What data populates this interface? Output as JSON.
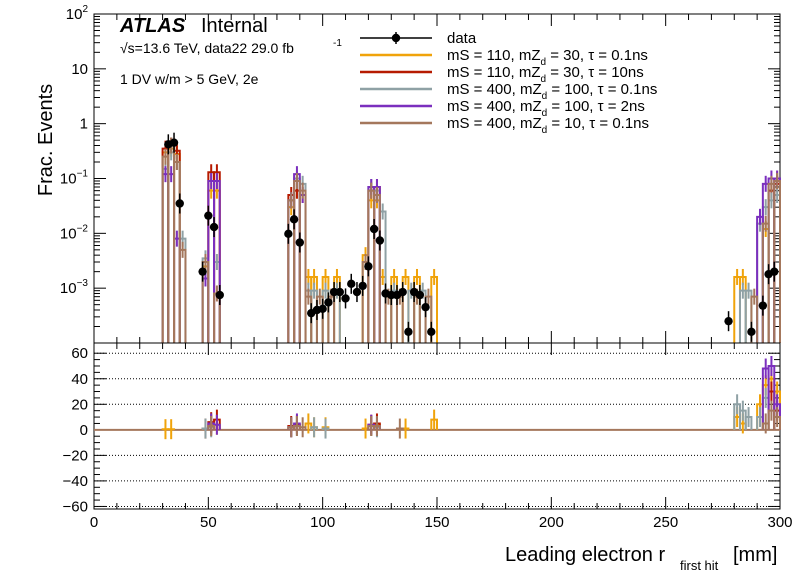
{
  "chart_data": {
    "type": "histogram",
    "experiment": "ATLAS",
    "status": "Internal",
    "energy_label": "√s=13.6 TeV, data22 29.0 fb",
    "lumi_exponent": "-1",
    "selection_label": "1 DV w/m > 5 GeV, 2e",
    "ylabel": "Frac. Events",
    "xlabel_main": "Leading electron r",
    "xlabel_sub": "first hit",
    "xlabel_unit": "[mm]",
    "xlim": [
      0,
      300
    ],
    "ylim": [
      0.0001,
      100
    ],
    "yscale": "log",
    "ratio_ylim": [
      -62,
      68
    ],
    "x_ticks": [
      0,
      50,
      100,
      150,
      200,
      250,
      300
    ],
    "y_ticks": [
      {
        "value": 100,
        "base": "10",
        "exp": "2"
      },
      {
        "value": 10,
        "base": "10",
        "exp": ""
      },
      {
        "value": 1,
        "base": "1",
        "exp": ""
      },
      {
        "value": 0.1,
        "base": "10",
        "exp": "−1"
      },
      {
        "value": 0.01,
        "base": "10",
        "exp": "−2"
      },
      {
        "value": 0.001,
        "base": "10",
        "exp": "−3"
      }
    ],
    "ratio_ticks": [
      {
        "value": 60,
        "label": "60"
      },
      {
        "value": 40,
        "label": "40"
      },
      {
        "value": 20,
        "label": "20"
      },
      {
        "value": 0,
        "label": "0"
      },
      {
        "value": -20,
        "label": "−20"
      },
      {
        "value": -40,
        "label": "−40"
      },
      {
        "value": -60,
        "label": "−60"
      }
    ],
    "ratio_gridlines": [
      60,
      40,
      20,
      0,
      -20,
      -40,
      -60
    ],
    "legend_position": "top-center",
    "data": {
      "name": "data",
      "color": "#000000",
      "points": [
        {
          "x": 32.5,
          "y": 0.42
        },
        {
          "x": 35,
          "y": 0.45
        },
        {
          "x": 37.5,
          "y": 0.035
        },
        {
          "x": 47.5,
          "y": 0.002
        },
        {
          "x": 50,
          "y": 0.021
        },
        {
          "x": 52.5,
          "y": 0.013
        },
        {
          "x": 55,
          "y": 0.00075
        },
        {
          "x": 85,
          "y": 0.0098
        },
        {
          "x": 87.5,
          "y": 0.018
        },
        {
          "x": 90,
          "y": 0.0068
        },
        {
          "x": 95,
          "y": 0.00035
        },
        {
          "x": 97.5,
          "y": 0.0004
        },
        {
          "x": 100,
          "y": 0.00042
        },
        {
          "x": 102.5,
          "y": 0.00055
        },
        {
          "x": 105,
          "y": 0.00085
        },
        {
          "x": 107.5,
          "y": 0.00085
        },
        {
          "x": 110,
          "y": 0.00065
        },
        {
          "x": 112.5,
          "y": 0.0012
        },
        {
          "x": 115,
          "y": 0.00085
        },
        {
          "x": 117.5,
          "y": 0.0011
        },
        {
          "x": 120,
          "y": 0.0025
        },
        {
          "x": 122.5,
          "y": 0.012
        },
        {
          "x": 125,
          "y": 0.0074
        },
        {
          "x": 127.5,
          "y": 0.0008
        },
        {
          "x": 130,
          "y": 0.00075
        },
        {
          "x": 132.5,
          "y": 0.00075
        },
        {
          "x": 135,
          "y": 0.00085
        },
        {
          "x": 137.5,
          "y": 0.00016
        },
        {
          "x": 140,
          "y": 0.00085
        },
        {
          "x": 142.5,
          "y": 0.00075
        },
        {
          "x": 145,
          "y": 0.00045
        },
        {
          "x": 147.5,
          "y": 0.00016
        },
        {
          "x": 277.5,
          "y": 0.00025
        },
        {
          "x": 287.5,
          "y": 0.00016
        },
        {
          "x": 292.5,
          "y": 0.00048
        },
        {
          "x": 295,
          "y": 0.0018
        },
        {
          "x": 297.5,
          "y": 0.002
        }
      ]
    },
    "series": [
      {
        "name": "mS = 110, mZ",
        "sub": "d",
        "rest": " = 30, τ = 0.1ns",
        "color": "#f0a30a",
        "bins": [
          [
            30,
            32.5,
            0.3
          ],
          [
            32.5,
            35,
            0.35
          ],
          [
            35,
            37.5,
            0.28
          ],
          [
            47.5,
            50,
            0.0025
          ],
          [
            50,
            52.5,
            0.06
          ],
          [
            52.5,
            55,
            0.06
          ],
          [
            85,
            87.5,
            0.03
          ],
          [
            87.5,
            90,
            0.06
          ],
          [
            90,
            92.5,
            0.05
          ],
          [
            92.5,
            95,
            0.0016
          ],
          [
            95,
            97.5,
            0.0016
          ],
          [
            100,
            102.5,
            0.0016
          ],
          [
            105,
            107.5,
            0.0016
          ],
          [
            117.5,
            120,
            0.004
          ],
          [
            120,
            122.5,
            0.04
          ],
          [
            122.5,
            125,
            0.04
          ],
          [
            125,
            127.5,
            0.0016
          ],
          [
            130,
            132.5,
            0.0016
          ],
          [
            135,
            137.5,
            0.0016
          ],
          [
            140,
            142.5,
            0.0016
          ],
          [
            147.5,
            150,
            0.0016
          ],
          [
            280,
            282.5,
            0.0016
          ],
          [
            282.5,
            285,
            0.0016
          ],
          [
            292.5,
            295,
            0.012
          ],
          [
            295,
            297.5,
            0.06
          ],
          [
            297.5,
            300,
            0.1
          ]
        ]
      },
      {
        "name": "mS = 110, mZ",
        "sub": "d",
        "rest": " = 30, τ = 10ns",
        "color": "#b61a00",
        "bins": [
          [
            30,
            32.5,
            0.35
          ],
          [
            32.5,
            35,
            0.4
          ],
          [
            35,
            37.5,
            0.32
          ],
          [
            50,
            52.5,
            0.13
          ],
          [
            52.5,
            55,
            0.13
          ],
          [
            85,
            87.5,
            0.05
          ],
          [
            87.5,
            90,
            0.06
          ],
          [
            120,
            122.5,
            0.06
          ],
          [
            122.5,
            125,
            0.07
          ],
          [
            295,
            297.5,
            0.06
          ],
          [
            297.5,
            300,
            0.08
          ]
        ]
      },
      {
        "name": "mS = 400, mZ",
        "sub": "d",
        "rest": " = 100, τ = 0.1ns",
        "color": "#8fa1a5",
        "bins": [
          [
            30,
            32.5,
            0.15
          ],
          [
            32.5,
            35,
            0.3
          ],
          [
            35,
            37.5,
            0.2
          ],
          [
            37.5,
            40,
            0.008
          ],
          [
            47.5,
            50,
            0.0035
          ],
          [
            52.5,
            55,
            0.003
          ],
          [
            85,
            87.5,
            0.04
          ],
          [
            87.5,
            90,
            0.1
          ],
          [
            90,
            92.5,
            0.08
          ],
          [
            92.5,
            95,
            0.0009
          ],
          [
            95,
            97.5,
            0.0009
          ],
          [
            100,
            102.5,
            0.0009
          ],
          [
            105,
            107.5,
            0.0009
          ],
          [
            120,
            122.5,
            0.07
          ],
          [
            122.5,
            125,
            0.06
          ],
          [
            125,
            127.5,
            0.025
          ],
          [
            130,
            132.5,
            0.0009
          ],
          [
            137.5,
            140,
            0.0009
          ],
          [
            142.5,
            145,
            0.0009
          ],
          [
            282.5,
            285,
            0.0009
          ],
          [
            285,
            287.5,
            0.0009
          ],
          [
            290,
            292.5,
            0.015
          ],
          [
            292.5,
            295,
            0.03
          ],
          [
            295,
            297.5,
            0.04
          ],
          [
            297.5,
            300,
            0.05
          ]
        ]
      },
      {
        "name": "mS = 400, mZ",
        "sub": "d",
        "rest": " = 100, τ = 2ns",
        "color": "#7b2fbe",
        "bins": [
          [
            30,
            32.5,
            0.12
          ],
          [
            32.5,
            35,
            0.12
          ],
          [
            35,
            37.5,
            0.008
          ],
          [
            47.5,
            50,
            0.0015
          ],
          [
            50,
            52.5,
            0.09
          ],
          [
            52.5,
            55,
            0.09
          ],
          [
            85,
            87.5,
            0.04
          ],
          [
            87.5,
            90,
            0.12
          ],
          [
            90,
            92.5,
            0.05
          ],
          [
            120,
            122.5,
            0.07
          ],
          [
            122.5,
            125,
            0.07
          ],
          [
            290,
            292.5,
            0.02
          ],
          [
            292.5,
            295,
            0.08
          ],
          [
            295,
            297.5,
            0.1
          ],
          [
            297.5,
            300,
            0.1
          ]
        ]
      },
      {
        "name": "mS = 400, mZ",
        "sub": "d",
        "rest": " = 10, τ = 0.1ns",
        "color": "#a4775c",
        "bins": [
          [
            30,
            32.5,
            0.25
          ],
          [
            32.5,
            35,
            0.4
          ],
          [
            35,
            37.5,
            0.2
          ],
          [
            37.5,
            40,
            0.005
          ],
          [
            47.5,
            50,
            0.003
          ],
          [
            52.5,
            55,
            0.0008
          ],
          [
            85,
            87.5,
            0.04
          ],
          [
            87.5,
            90,
            0.09
          ],
          [
            90,
            92.5,
            0.06
          ],
          [
            92.5,
            95,
            0.0007
          ],
          [
            97.5,
            100,
            0.0007
          ],
          [
            102.5,
            105,
            0.0007
          ],
          [
            117.5,
            120,
            0.003
          ],
          [
            120,
            122.5,
            0.06
          ],
          [
            122.5,
            125,
            0.05
          ],
          [
            127.5,
            130,
            0.0007
          ],
          [
            132.5,
            135,
            0.0007
          ],
          [
            140,
            142.5,
            0.0007
          ],
          [
            145,
            147.5,
            0.0007
          ],
          [
            287.5,
            290,
            0.0007
          ],
          [
            292.5,
            295,
            0.015
          ],
          [
            295,
            297.5,
            0.08
          ],
          [
            297.5,
            300,
            0.09
          ]
        ]
      }
    ],
    "ratio_bars": [
      {
        "color": "#f0a30a",
        "bins": [
          [
            30,
            32.5,
            0.5
          ],
          [
            32.5,
            35,
            0.5
          ],
          [
            47.5,
            50,
            1
          ],
          [
            50,
            52.5,
            4
          ],
          [
            52.5,
            55,
            4
          ],
          [
            85,
            87.5,
            2
          ],
          [
            87.5,
            90,
            3
          ],
          [
            92.5,
            95,
            5
          ],
          [
            95,
            97.5,
            2
          ],
          [
            100,
            102.5,
            2
          ],
          [
            117.5,
            120,
            1
          ],
          [
            120,
            122.5,
            3
          ],
          [
            122.5,
            125,
            4
          ],
          [
            135,
            137.5,
            1
          ],
          [
            147.5,
            150,
            8
          ],
          [
            280,
            282.5,
            10
          ],
          [
            282.5,
            285,
            5
          ],
          [
            290,
            292.5,
            20
          ],
          [
            292.5,
            295,
            35
          ],
          [
            295,
            297.5,
            40
          ],
          [
            297.5,
            300,
            30
          ]
        ]
      },
      {
        "color": "#b61a00",
        "bins": [
          [
            47.5,
            50,
            1
          ],
          [
            50,
            52.5,
            6
          ],
          [
            52.5,
            55,
            8
          ],
          [
            85,
            87.5,
            3
          ],
          [
            87.5,
            90,
            4
          ],
          [
            120,
            122.5,
            4
          ],
          [
            122.5,
            125,
            5
          ],
          [
            295,
            297.5,
            30
          ],
          [
            297.5,
            300,
            15
          ]
        ]
      },
      {
        "color": "#8fa1a5",
        "bins": [
          [
            47.5,
            50,
            1
          ],
          [
            50,
            52.5,
            2
          ],
          [
            85,
            87.5,
            2
          ],
          [
            87.5,
            90,
            3
          ],
          [
            95,
            97.5,
            2
          ],
          [
            100,
            102.5,
            1
          ],
          [
            120,
            122.5,
            3
          ],
          [
            122.5,
            125,
            2
          ],
          [
            280,
            282.5,
            20
          ],
          [
            282.5,
            285,
            15
          ],
          [
            285,
            287.5,
            10
          ],
          [
            290,
            292.5,
            10
          ],
          [
            292.5,
            295,
            25
          ]
        ]
      },
      {
        "color": "#7b2fbe",
        "bins": [
          [
            50,
            52.5,
            5
          ],
          [
            52.5,
            55,
            4
          ],
          [
            85,
            87.5,
            2
          ],
          [
            87.5,
            90,
            5
          ],
          [
            120,
            122.5,
            4
          ],
          [
            122.5,
            125,
            3
          ],
          [
            292.5,
            295,
            48
          ],
          [
            295,
            297.5,
            50
          ],
          [
            297.5,
            300,
            20
          ]
        ]
      },
      {
        "color": "#a4775c",
        "bins": [
          [
            50,
            52.5,
            3
          ],
          [
            85,
            87.5,
            2
          ],
          [
            87.5,
            90,
            3
          ],
          [
            90,
            92.5,
            2
          ],
          [
            120,
            122.5,
            3
          ],
          [
            122.5,
            125,
            3
          ],
          [
            132.5,
            135,
            1
          ],
          [
            292.5,
            295,
            5
          ],
          [
            295,
            297.5,
            15
          ],
          [
            297.5,
            300,
            10
          ]
        ]
      }
    ]
  }
}
